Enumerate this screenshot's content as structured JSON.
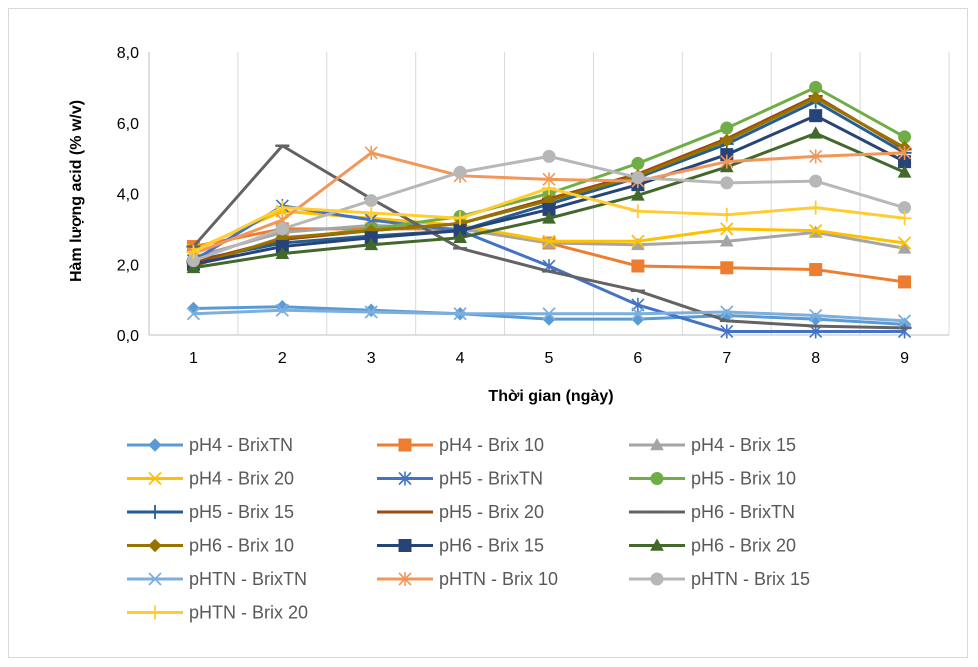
{
  "chart_data": {
    "type": "line",
    "title": "",
    "xlabel": "Thời gian (ngày)",
    "ylabel": "Hàm lượng acid (% w/v)",
    "ylim": [
      0,
      8
    ],
    "x_ticks": [
      "1",
      "2",
      "3",
      "4",
      "5",
      "6",
      "7",
      "8",
      "9"
    ],
    "y_ticks": [
      "0,0",
      "2,0",
      "4,0",
      "6,0",
      "8,0"
    ],
    "grid": "vertical",
    "legend_position": "bottom",
    "series": [
      {
        "name": "pH4 - BrixTN",
        "color": "#5b9bd5",
        "marker": "diamond",
        "values": [
          0.75,
          0.8,
          0.7,
          0.6,
          0.45,
          0.45,
          0.55,
          0.45,
          0.3
        ]
      },
      {
        "name": "pH4 - Brix 10",
        "color": "#ed7d31",
        "marker": "square",
        "values": [
          2.5,
          3.0,
          3.0,
          3.0,
          2.6,
          1.95,
          1.9,
          1.85,
          1.5
        ]
      },
      {
        "name": "pH4 - Brix 15",
        "color": "#a5a5a5",
        "marker": "triangle",
        "values": [
          2.2,
          2.9,
          3.1,
          3.0,
          2.6,
          2.55,
          2.65,
          2.9,
          2.45
        ]
      },
      {
        "name": "pH4 - Brix 20",
        "color": "#ffc000",
        "marker": "x",
        "values": [
          2.4,
          3.5,
          3.3,
          3.1,
          2.65,
          2.65,
          3.0,
          2.95,
          2.6
        ]
      },
      {
        "name": "pH5 - BrixTN",
        "color": "#4472c4",
        "marker": "star",
        "values": [
          2.1,
          3.65,
          3.25,
          2.95,
          1.95,
          0.85,
          0.1,
          0.1,
          0.1
        ]
      },
      {
        "name": "pH5 - Brix 10",
        "color": "#70ad47",
        "marker": "circle",
        "values": [
          2.0,
          2.7,
          3.0,
          3.35,
          4.0,
          4.85,
          5.85,
          7.0,
          5.6
        ]
      },
      {
        "name": "pH5 - Brix 15",
        "color": "#255e91",
        "marker": "plus",
        "values": [
          2.1,
          2.6,
          2.8,
          2.95,
          3.7,
          4.45,
          5.4,
          6.6,
          5.15
        ]
      },
      {
        "name": "pH5 - Brix 20",
        "color": "#9e480e",
        "marker": "dash",
        "values": [
          2.05,
          2.7,
          2.95,
          3.15,
          3.85,
          4.55,
          5.55,
          6.75,
          5.25
        ]
      },
      {
        "name": "pH6 - BrixTN",
        "color": "#636363",
        "marker": "dash",
        "values": [
          2.5,
          5.35,
          3.85,
          2.45,
          1.8,
          1.25,
          0.4,
          0.25,
          0.2
        ]
      },
      {
        "name": "pH6 - Brix 10",
        "color": "#997300",
        "marker": "diamond",
        "values": [
          1.95,
          2.75,
          2.95,
          3.15,
          3.8,
          4.5,
          5.5,
          6.7,
          5.3
        ]
      },
      {
        "name": "pH6 - Brix 15",
        "color": "#264478",
        "marker": "square",
        "values": [
          2.0,
          2.5,
          2.75,
          2.95,
          3.55,
          4.25,
          5.1,
          6.2,
          4.9
        ]
      },
      {
        "name": "pH6 - Brix 20",
        "color": "#43682b",
        "marker": "triangle",
        "values": [
          1.9,
          2.3,
          2.55,
          2.75,
          3.3,
          3.95,
          4.75,
          5.7,
          4.6
        ]
      },
      {
        "name": "pHTN - BrixTN",
        "color": "#7cafdd",
        "marker": "x",
        "values": [
          0.6,
          0.7,
          0.65,
          0.6,
          0.6,
          0.6,
          0.65,
          0.55,
          0.4
        ]
      },
      {
        "name": "pHTN - Brix 10",
        "color": "#f1975a",
        "marker": "star",
        "values": [
          2.3,
          3.25,
          5.15,
          4.5,
          4.4,
          4.35,
          4.9,
          5.05,
          5.15
        ]
      },
      {
        "name": "pHTN - Brix 15",
        "color": "#b7b7b7",
        "marker": "circle",
        "values": [
          2.1,
          3.0,
          3.8,
          4.6,
          5.05,
          4.45,
          4.3,
          4.35,
          3.6
        ]
      },
      {
        "name": "pHTN - Brix 20",
        "color": "#ffcd33",
        "marker": "plus",
        "values": [
          2.35,
          3.6,
          3.45,
          3.3,
          4.15,
          3.5,
          3.4,
          3.6,
          3.3
        ]
      }
    ]
  }
}
